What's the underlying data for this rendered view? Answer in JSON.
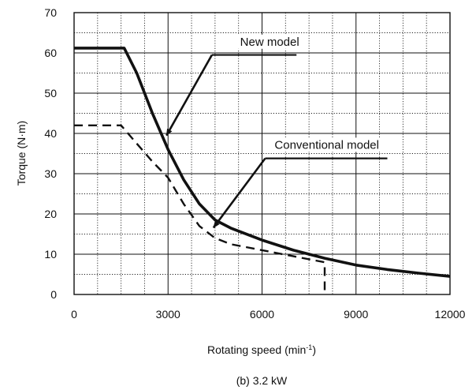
{
  "chart_data": {
    "type": "line",
    "caption": "(b) 3.2 kW",
    "xlabel": "Rotating speed (min",
    "xlabel_sup": "-1",
    "xlabel_end": ")",
    "ylabel": "Torque (N·m)",
    "xlim": [
      0,
      12000
    ],
    "ylim": [
      0,
      70
    ],
    "x_ticks": [
      0,
      3000,
      6000,
      9000,
      12000
    ],
    "x_tick_labels": [
      "0",
      "3000",
      "6000",
      "9000",
      "12000"
    ],
    "y_ticks": [
      0,
      10,
      20,
      30,
      40,
      50,
      60,
      70
    ],
    "y_tick_labels": [
      "0",
      "10",
      "20",
      "30",
      "40",
      "50",
      "60",
      "70"
    ],
    "x_minor_step": 750,
    "y_minor_step": 5,
    "grid": true,
    "series": [
      {
        "name": "New model",
        "style": "solid",
        "color": "#111111",
        "points": [
          [
            0,
            61.2
          ],
          [
            1600,
            61.2
          ],
          [
            2000,
            55
          ],
          [
            2500,
            45
          ],
          [
            3000,
            36
          ],
          [
            3500,
            28.5
          ],
          [
            4000,
            22.5
          ],
          [
            4500,
            18.5
          ],
          [
            5000,
            16.5
          ],
          [
            6000,
            13.5
          ],
          [
            7000,
            11
          ],
          [
            8000,
            9
          ],
          [
            9000,
            7.3
          ],
          [
            10000,
            6.2
          ],
          [
            11000,
            5.3
          ],
          [
            12000,
            4.5
          ]
        ]
      },
      {
        "name": "Conventional model",
        "style": "dashed",
        "color": "#111111",
        "points": [
          [
            0,
            42
          ],
          [
            1500,
            42
          ],
          [
            2000,
            37.5
          ],
          [
            2500,
            33
          ],
          [
            3000,
            29
          ],
          [
            3500,
            22.5
          ],
          [
            4000,
            17
          ],
          [
            4500,
            14
          ],
          [
            5000,
            12.5
          ],
          [
            6000,
            11
          ],
          [
            7000,
            9.5
          ],
          [
            8000,
            8
          ],
          [
            8000,
            0
          ]
        ]
      }
    ],
    "annotations": [
      {
        "label": "New model",
        "text_at": [
          5300,
          61.8
        ],
        "leader": [
          [
            4400,
            59.5
          ],
          [
            7100,
            59.5
          ]
        ],
        "arrow_from": [
          4400,
          59.5
        ],
        "arrow_to": [
          2950,
          39.5
        ]
      },
      {
        "label": "Conventional model",
        "text_at": [
          6400,
          36.2
        ],
        "leader": [
          [
            6100,
            33.8
          ],
          [
            10000,
            33.8
          ]
        ],
        "arrow_from": [
          6100,
          33.8
        ],
        "arrow_to": [
          4450,
          16.6
        ]
      }
    ]
  }
}
